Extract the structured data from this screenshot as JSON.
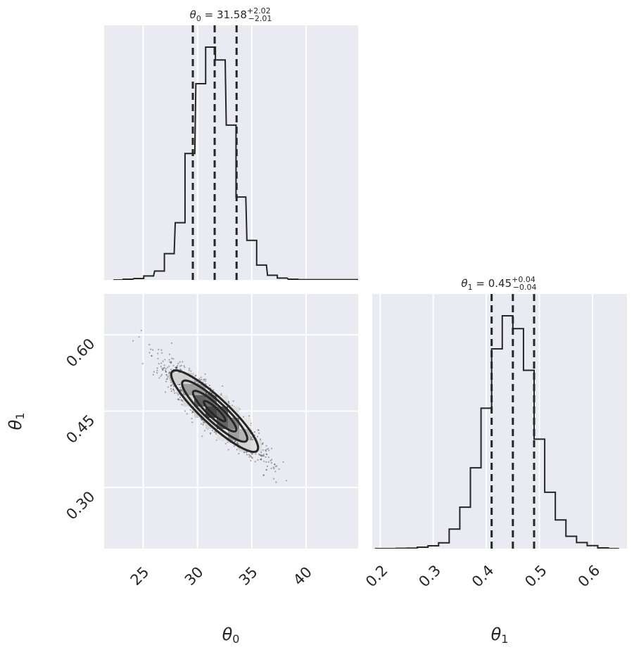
{
  "chart_data": {
    "type": "corner",
    "parameters": [
      "θ0",
      "θ1"
    ],
    "axis_labels": {
      "theta0": "θ",
      "theta0_sub": "0",
      "theta1": "θ",
      "theta1_sub": "1"
    },
    "panels": {
      "hist_theta0": {
        "type": "histogram",
        "title": {
          "name": "θ",
          "sub": "0",
          "eq": " = 31.58",
          "plus": "+2.02",
          "minus": "−2.01"
        },
        "xlim": [
          21.4,
          44.8
        ],
        "ylim": [
          0,
          1.0
        ],
        "bins": [
          [
            22.7,
            0.0
          ],
          [
            23.6,
            0.003
          ],
          [
            24.6,
            0.006
          ],
          [
            25.5,
            0.017
          ],
          [
            26.5,
            0.038
          ],
          [
            27.4,
            0.113
          ],
          [
            28.4,
            0.246
          ],
          [
            29.3,
            0.543
          ],
          [
            30.3,
            0.843
          ],
          [
            31.2,
            1.0
          ],
          [
            32.1,
            0.945
          ],
          [
            33.1,
            0.665
          ],
          [
            34.0,
            0.356
          ],
          [
            35.0,
            0.17
          ],
          [
            35.9,
            0.064
          ],
          [
            36.9,
            0.02
          ],
          [
            37.8,
            0.008
          ],
          [
            38.8,
            0.003
          ],
          [
            39.7,
            0.001
          ],
          [
            40.6,
            0.001
          ],
          [
            41.6,
            0.001
          ],
          [
            42.5,
            0.001
          ],
          [
            43.5,
            0.001
          ],
          [
            44.4,
            0.001
          ]
        ],
        "quantiles": [
          29.57,
          31.58,
          33.6
        ],
        "xticks": [
          25,
          30,
          35,
          40
        ]
      },
      "scatter_theta0_theta1": {
        "type": "scatter-contour",
        "xlim": [
          21.4,
          44.8
        ],
        "ylim": [
          0.18,
          0.68
        ],
        "xticks": [
          25,
          30,
          35,
          40
        ],
        "xtick_labels": [
          "25",
          "30",
          "35",
          "40"
        ],
        "yticks": [
          0.3,
          0.45,
          0.6
        ],
        "ytick_labels": [
          "0.30",
          "0.45",
          "0.60"
        ],
        "center": [
          31.58,
          0.45
        ],
        "sigma_x": 2.0,
        "sigma_y": 0.04,
        "correlation": -0.9,
        "contour_levels_sigma": [
          0.5,
          1.0,
          1.5,
          2.0
        ]
      },
      "hist_theta1": {
        "type": "histogram",
        "title": {
          "name": "θ",
          "sub": "1",
          "eq": " = 0.45",
          "plus": "+0.04",
          "minus": "−0.04"
        },
        "xlim": [
          0.185,
          0.665
        ],
        "ylim": [
          0,
          1.0
        ],
        "bins": [
          [
            0.2,
            0.0
          ],
          [
            0.22,
            0.0
          ],
          [
            0.24,
            0.001
          ],
          [
            0.26,
            0.002
          ],
          [
            0.28,
            0.006
          ],
          [
            0.3,
            0.012
          ],
          [
            0.32,
            0.025
          ],
          [
            0.34,
            0.084
          ],
          [
            0.36,
            0.178
          ],
          [
            0.38,
            0.347
          ],
          [
            0.4,
            0.603
          ],
          [
            0.42,
            0.858
          ],
          [
            0.44,
            1.0
          ],
          [
            0.46,
            0.945
          ],
          [
            0.48,
            0.766
          ],
          [
            0.5,
            0.47
          ],
          [
            0.52,
            0.242
          ],
          [
            0.54,
            0.123
          ],
          [
            0.56,
            0.053
          ],
          [
            0.58,
            0.026
          ],
          [
            0.6,
            0.013
          ],
          [
            0.62,
            0.003
          ],
          [
            0.64,
            0.0
          ]
        ],
        "quantiles": [
          0.41,
          0.45,
          0.49
        ],
        "xticks": [
          0.2,
          0.3,
          0.4,
          0.5,
          0.6
        ],
        "xtick_labels": [
          "0.2",
          "0.3",
          "0.4",
          "0.5",
          "0.6"
        ]
      }
    },
    "style": {
      "background": "#eaeaf2",
      "grid": "#ffffff",
      "line": "#262626",
      "quantile": "#262626"
    }
  }
}
